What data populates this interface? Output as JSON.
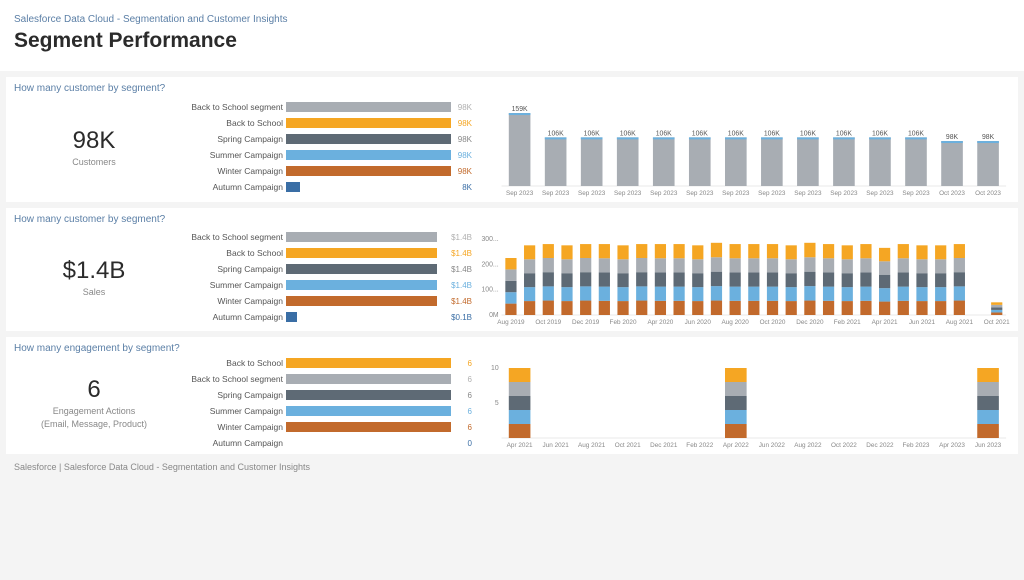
{
  "header": {
    "breadcrumb": "Salesforce Data Cloud - Segmentation and Customer Insights",
    "title": "Segment Performance"
  },
  "palette": {
    "grey": "#a8adb3",
    "orange": "#f5a623",
    "darkgrey": "#5e6a75",
    "blue": "#6bb0de",
    "rust": "#c26a2c",
    "smallblue": "#3a6ea5"
  },
  "sections": {
    "customers": {
      "title": "How many customer by segment?",
      "kpi": {
        "value": "98K",
        "label": "Customers"
      },
      "hbars": {
        "max": 100,
        "items": [
          {
            "label": "Back to School segment",
            "value": 98,
            "display": "98K",
            "colorKey": "grey",
            "valColor": "#b0b0b0"
          },
          {
            "label": "Back to School",
            "value": 98,
            "display": "98K",
            "colorKey": "orange",
            "valColor": "#f5a623"
          },
          {
            "label": "Spring Campaign",
            "value": 98,
            "display": "98K",
            "colorKey": "darkgrey",
            "valColor": "#888"
          },
          {
            "label": "Summer Campaign",
            "value": 98,
            "display": "98K",
            "colorKey": "blue",
            "valColor": "#6bb0de"
          },
          {
            "label": "Winter Campaign",
            "value": 98,
            "display": "98K",
            "colorKey": "rust",
            "valColor": "#c26a2c"
          },
          {
            "label": "Autumn Campaign",
            "value": 8,
            "display": "8K",
            "colorKey": "smallblue",
            "valColor": "#3a6ea5"
          }
        ]
      },
      "timechart": {
        "type": "bar",
        "ylim": 170,
        "bars": [
          {
            "x": "Sep 2023",
            "v": 159,
            "label": "159K"
          },
          {
            "x": "Sep 2023",
            "v": 106,
            "label": "106K"
          },
          {
            "x": "Sep 2023",
            "v": 106,
            "label": "106K"
          },
          {
            "x": "Sep 2023",
            "v": 106,
            "label": "106K"
          },
          {
            "x": "Sep 2023",
            "v": 106,
            "label": "106K"
          },
          {
            "x": "Sep 2023",
            "v": 106,
            "label": "106K"
          },
          {
            "x": "Sep 2023",
            "v": 106,
            "label": "106K"
          },
          {
            "x": "Sep 2023",
            "v": 106,
            "label": "106K"
          },
          {
            "x": "Sep 2023",
            "v": 106,
            "label": "106K"
          },
          {
            "x": "Sep 2023",
            "v": 106,
            "label": "106K"
          },
          {
            "x": "Sep 2023",
            "v": 106,
            "label": "106K"
          },
          {
            "x": "Sep 2023",
            "v": 106,
            "label": "106K"
          },
          {
            "x": "Oct 2023",
            "v": 98,
            "label": "98K"
          },
          {
            "x": "Oct 2023",
            "v": 98,
            "label": "98K"
          }
        ],
        "barColor": "#a8adb3",
        "tipColor": "#6bb0de"
      }
    },
    "sales": {
      "title": "How many customer by segment?",
      "kpi": {
        "value": "$1.4B",
        "label": "Sales"
      },
      "hbars": {
        "max": 1.5,
        "items": [
          {
            "label": "Back to School segment",
            "value": 1.4,
            "display": "$1.4B",
            "colorKey": "grey",
            "valColor": "#b0b0b0"
          },
          {
            "label": "Back to School",
            "value": 1.4,
            "display": "$1.4B",
            "colorKey": "orange",
            "valColor": "#f5a623"
          },
          {
            "label": "Spring Campaign",
            "value": 1.4,
            "display": "$1.4B",
            "colorKey": "darkgrey",
            "valColor": "#888"
          },
          {
            "label": "Summer Campaign",
            "value": 1.4,
            "display": "$1.4B",
            "colorKey": "blue",
            "valColor": "#6bb0de"
          },
          {
            "label": "Winter Campaign",
            "value": 1.4,
            "display": "$1.4B",
            "colorKey": "rust",
            "valColor": "#c26a2c"
          },
          {
            "label": "Autumn Campaign",
            "value": 0.1,
            "display": "$0.1B",
            "colorKey": "smallblue",
            "valColor": "#3a6ea5"
          }
        ]
      },
      "timechart": {
        "type": "stacked",
        "ylim": 300,
        "yticks": [
          {
            "v": 0,
            "label": "0M"
          },
          {
            "v": 100,
            "label": "100..."
          },
          {
            "v": 200,
            "label": "200..."
          },
          {
            "v": 300,
            "label": "300..."
          }
        ],
        "stackOrder": [
          "rust",
          "blue",
          "darkgrey",
          "grey",
          "orange"
        ],
        "bars": [
          {
            "x": "Aug 2019",
            "seg": {
              "rust": 45,
              "blue": 45,
              "darkgrey": 45,
              "grey": 45,
              "orange": 45
            }
          },
          {
            "x": "",
            "seg": {
              "rust": 55,
              "blue": 55,
              "darkgrey": 55,
              "grey": 55,
              "orange": 55
            }
          },
          {
            "x": "Oct 2019",
            "seg": {
              "rust": 57,
              "blue": 56,
              "darkgrey": 56,
              "grey": 56,
              "orange": 55
            }
          },
          {
            "x": "",
            "seg": {
              "rust": 55,
              "blue": 55,
              "darkgrey": 55,
              "grey": 55,
              "orange": 55
            }
          },
          {
            "x": "Dec 2019",
            "seg": {
              "rust": 57,
              "blue": 56,
              "darkgrey": 56,
              "grey": 56,
              "orange": 55
            }
          },
          {
            "x": "",
            "seg": {
              "rust": 56,
              "blue": 56,
              "darkgrey": 56,
              "grey": 56,
              "orange": 56
            }
          },
          {
            "x": "Feb 2020",
            "seg": {
              "rust": 55,
              "blue": 55,
              "darkgrey": 55,
              "grey": 55,
              "orange": 55
            }
          },
          {
            "x": "",
            "seg": {
              "rust": 57,
              "blue": 56,
              "darkgrey": 56,
              "grey": 56,
              "orange": 55
            }
          },
          {
            "x": "Apr 2020",
            "seg": {
              "rust": 56,
              "blue": 56,
              "darkgrey": 56,
              "grey": 56,
              "orange": 56
            }
          },
          {
            "x": "",
            "seg": {
              "rust": 56,
              "blue": 56,
              "darkgrey": 56,
              "grey": 56,
              "orange": 56
            }
          },
          {
            "x": "Jun 2020",
            "seg": {
              "rust": 55,
              "blue": 55,
              "darkgrey": 55,
              "grey": 55,
              "orange": 55
            }
          },
          {
            "x": "",
            "seg": {
              "rust": 57,
              "blue": 57,
              "darkgrey": 57,
              "grey": 57,
              "orange": 57
            }
          },
          {
            "x": "Aug 2020",
            "seg": {
              "rust": 56,
              "blue": 56,
              "darkgrey": 56,
              "grey": 56,
              "orange": 56
            }
          },
          {
            "x": "",
            "seg": {
              "rust": 56,
              "blue": 56,
              "darkgrey": 56,
              "grey": 56,
              "orange": 56
            }
          },
          {
            "x": "Oct 2020",
            "seg": {
              "rust": 56,
              "blue": 56,
              "darkgrey": 56,
              "grey": 56,
              "orange": 56
            }
          },
          {
            "x": "",
            "seg": {
              "rust": 55,
              "blue": 55,
              "darkgrey": 55,
              "grey": 55,
              "orange": 55
            }
          },
          {
            "x": "Dec 2020",
            "seg": {
              "rust": 57,
              "blue": 57,
              "darkgrey": 57,
              "grey": 57,
              "orange": 57
            }
          },
          {
            "x": "",
            "seg": {
              "rust": 56,
              "blue": 56,
              "darkgrey": 56,
              "grey": 56,
              "orange": 56
            }
          },
          {
            "x": "Feb 2021",
            "seg": {
              "rust": 55,
              "blue": 55,
              "darkgrey": 55,
              "grey": 55,
              "orange": 55
            }
          },
          {
            "x": "",
            "seg": {
              "rust": 56,
              "blue": 56,
              "darkgrey": 56,
              "grey": 56,
              "orange": 56
            }
          },
          {
            "x": "Apr 2021",
            "seg": {
              "rust": 53,
              "blue": 53,
              "darkgrey": 53,
              "grey": 53,
              "orange": 53
            }
          },
          {
            "x": "",
            "seg": {
              "rust": 56,
              "blue": 56,
              "darkgrey": 56,
              "grey": 56,
              "orange": 56
            }
          },
          {
            "x": "Jun 2021",
            "seg": {
              "rust": 55,
              "blue": 55,
              "darkgrey": 55,
              "grey": 55,
              "orange": 55
            }
          },
          {
            "x": "",
            "seg": {
              "rust": 55,
              "blue": 55,
              "darkgrey": 55,
              "grey": 55,
              "orange": 55
            }
          },
          {
            "x": "Aug 2021",
            "seg": {
              "rust": 57,
              "blue": 56,
              "darkgrey": 56,
              "grey": 56,
              "orange": 55
            }
          },
          {
            "x": "",
            "seg": {
              "rust": 0,
              "blue": 0,
              "darkgrey": 0,
              "grey": 0,
              "orange": 0
            }
          },
          {
            "x": "Oct 2021",
            "seg": {
              "rust": 10,
              "blue": 10,
              "darkgrey": 10,
              "grey": 10,
              "orange": 10
            }
          }
        ]
      }
    },
    "engagement": {
      "title": "How many engagement by segment?",
      "kpi": {
        "value": "6",
        "label": "Engagement Actions",
        "sublabel": "(Email, Message, Product)"
      },
      "hbars": {
        "max": 6.5,
        "items": [
          {
            "label": "Back to School",
            "value": 6,
            "display": "6",
            "colorKey": "orange",
            "valColor": "#f5a623"
          },
          {
            "label": "Back to School segment",
            "value": 6,
            "display": "6",
            "colorKey": "grey",
            "valColor": "#b0b0b0"
          },
          {
            "label": "Spring Campaign",
            "value": 6,
            "display": "6",
            "colorKey": "darkgrey",
            "valColor": "#888"
          },
          {
            "label": "Summer Campaign",
            "value": 6,
            "display": "6",
            "colorKey": "blue",
            "valColor": "#6bb0de"
          },
          {
            "label": "Winter Campaign",
            "value": 6,
            "display": "6",
            "colorKey": "rust",
            "valColor": "#c26a2c"
          },
          {
            "label": "Autumn Campaign",
            "value": 0,
            "display": "0",
            "colorKey": "smallblue",
            "valColor": "#3a6ea5"
          }
        ]
      },
      "timechart": {
        "type": "stacked",
        "ylim": 10,
        "yticks": [
          {
            "v": 5,
            "label": "5"
          },
          {
            "v": 10,
            "label": "10"
          }
        ],
        "stackOrder": [
          "rust",
          "blue",
          "darkgrey",
          "grey",
          "orange"
        ],
        "bars": [
          {
            "x": "Apr 2021",
            "seg": {
              "rust": 2,
              "blue": 2,
              "darkgrey": 2,
              "grey": 2,
              "orange": 2
            }
          },
          {
            "x": "Jun 2021",
            "seg": {}
          },
          {
            "x": "Aug 2021",
            "seg": {}
          },
          {
            "x": "Oct 2021",
            "seg": {}
          },
          {
            "x": "Dec 2021",
            "seg": {}
          },
          {
            "x": "Feb 2022",
            "seg": {}
          },
          {
            "x": "Apr 2022",
            "seg": {
              "rust": 2,
              "blue": 2,
              "darkgrey": 2,
              "grey": 2,
              "orange": 2
            }
          },
          {
            "x": "Jun 2022",
            "seg": {}
          },
          {
            "x": "Aug 2022",
            "seg": {}
          },
          {
            "x": "Oct 2022",
            "seg": {}
          },
          {
            "x": "Dec 2022",
            "seg": {}
          },
          {
            "x": "Feb 2023",
            "seg": {}
          },
          {
            "x": "Apr 2023",
            "seg": {}
          },
          {
            "x": "Jun 2023",
            "seg": {
              "rust": 2,
              "blue": 2,
              "darkgrey": 2,
              "grey": 2,
              "orange": 2
            }
          }
        ]
      }
    }
  },
  "footer": "Salesforce | Salesforce Data Cloud - Segmentation and Customer Insights"
}
